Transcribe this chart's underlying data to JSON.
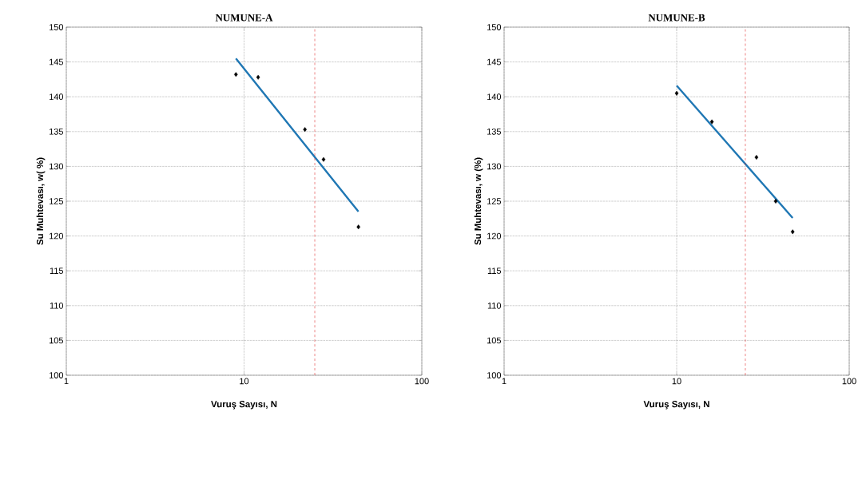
{
  "chart_data": [
    {
      "type": "scatter",
      "title": "NUMUNE-A",
      "xlabel": "Vuruş Sayısı, N",
      "ylabel": "Su Muhtevası, w( %)",
      "log": "x",
      "grid": true,
      "xlim": [
        1,
        100
      ],
      "xticks": [
        1,
        10,
        100
      ],
      "ylim": [
        100,
        150
      ],
      "yticks": [
        100,
        105,
        110,
        115,
        120,
        125,
        130,
        135,
        140,
        145,
        150
      ],
      "series": [
        {
          "color": "#000000",
          "marker": "diamond",
          "x": [
            9,
            12,
            22,
            28,
            44
          ],
          "values": [
            143.2,
            142.8,
            135.3,
            131.0,
            121.3
          ]
        },
        {
          "type": "line",
          "color": "#1f77b4",
          "marker": "none",
          "line_style": "solid",
          "x": [
            9,
            44
          ],
          "values": [
            145.5,
            123.5
          ]
        }
      ],
      "ref_lines": [
        {
          "axis": "x",
          "value": 25,
          "color": "#e03030",
          "line_style": "dashed"
        }
      ]
    },
    {
      "type": "scatter",
      "title": "NUMUNE-B",
      "xlabel": "Vuruş Sayısı, N",
      "ylabel": "Su Muhtevası, w (%)",
      "log": "x",
      "grid": true,
      "xlim": [
        1,
        100
      ],
      "xticks": [
        1,
        10,
        100
      ],
      "ylim": [
        100,
        150
      ],
      "yticks": [
        100,
        105,
        110,
        115,
        120,
        125,
        130,
        135,
        140,
        145,
        150
      ],
      "series": [
        {
          "color": "#000000",
          "marker": "diamond",
          "x": [
            10,
            16,
            29,
            37.5,
            47
          ],
          "values": [
            140.5,
            136.4,
            131.3,
            125.0,
            120.6
          ]
        },
        {
          "type": "line",
          "color": "#1f77b4",
          "marker": "none",
          "line_style": "solid",
          "x": [
            10,
            47
          ],
          "values": [
            141.6,
            122.6
          ]
        }
      ],
      "ref_lines": [
        {
          "axis": "x",
          "value": 25,
          "color": "#e03030",
          "line_style": "dashed"
        }
      ]
    }
  ]
}
